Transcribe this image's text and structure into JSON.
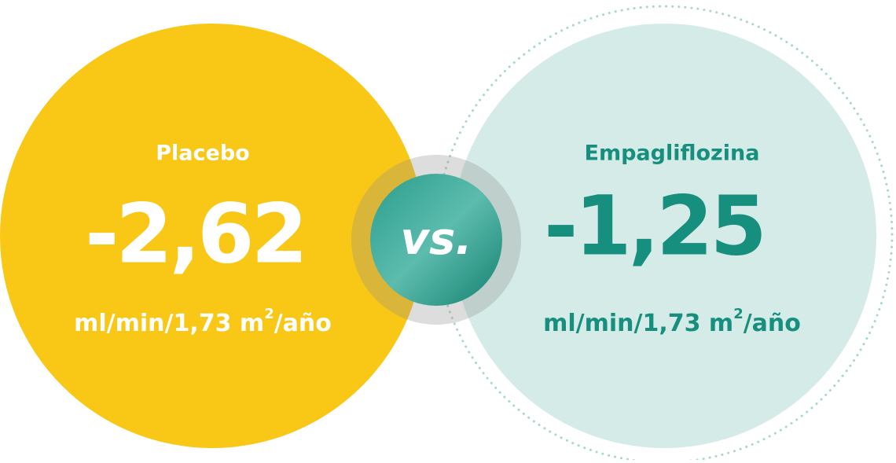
{
  "placebo": {
    "label": "Placebo",
    "value": "-2,62",
    "unit": {
      "main": "ml/min/1,73 m",
      "superscript": "2",
      "suffix": "/año"
    }
  },
  "empagliflozina": {
    "label": "Empagliflozina",
    "value": "-1,25",
    "unit": {
      "main": "ml/min/1,73 m",
      "superscript": "2",
      "suffix": "/año"
    }
  },
  "separator": "vs."
}
